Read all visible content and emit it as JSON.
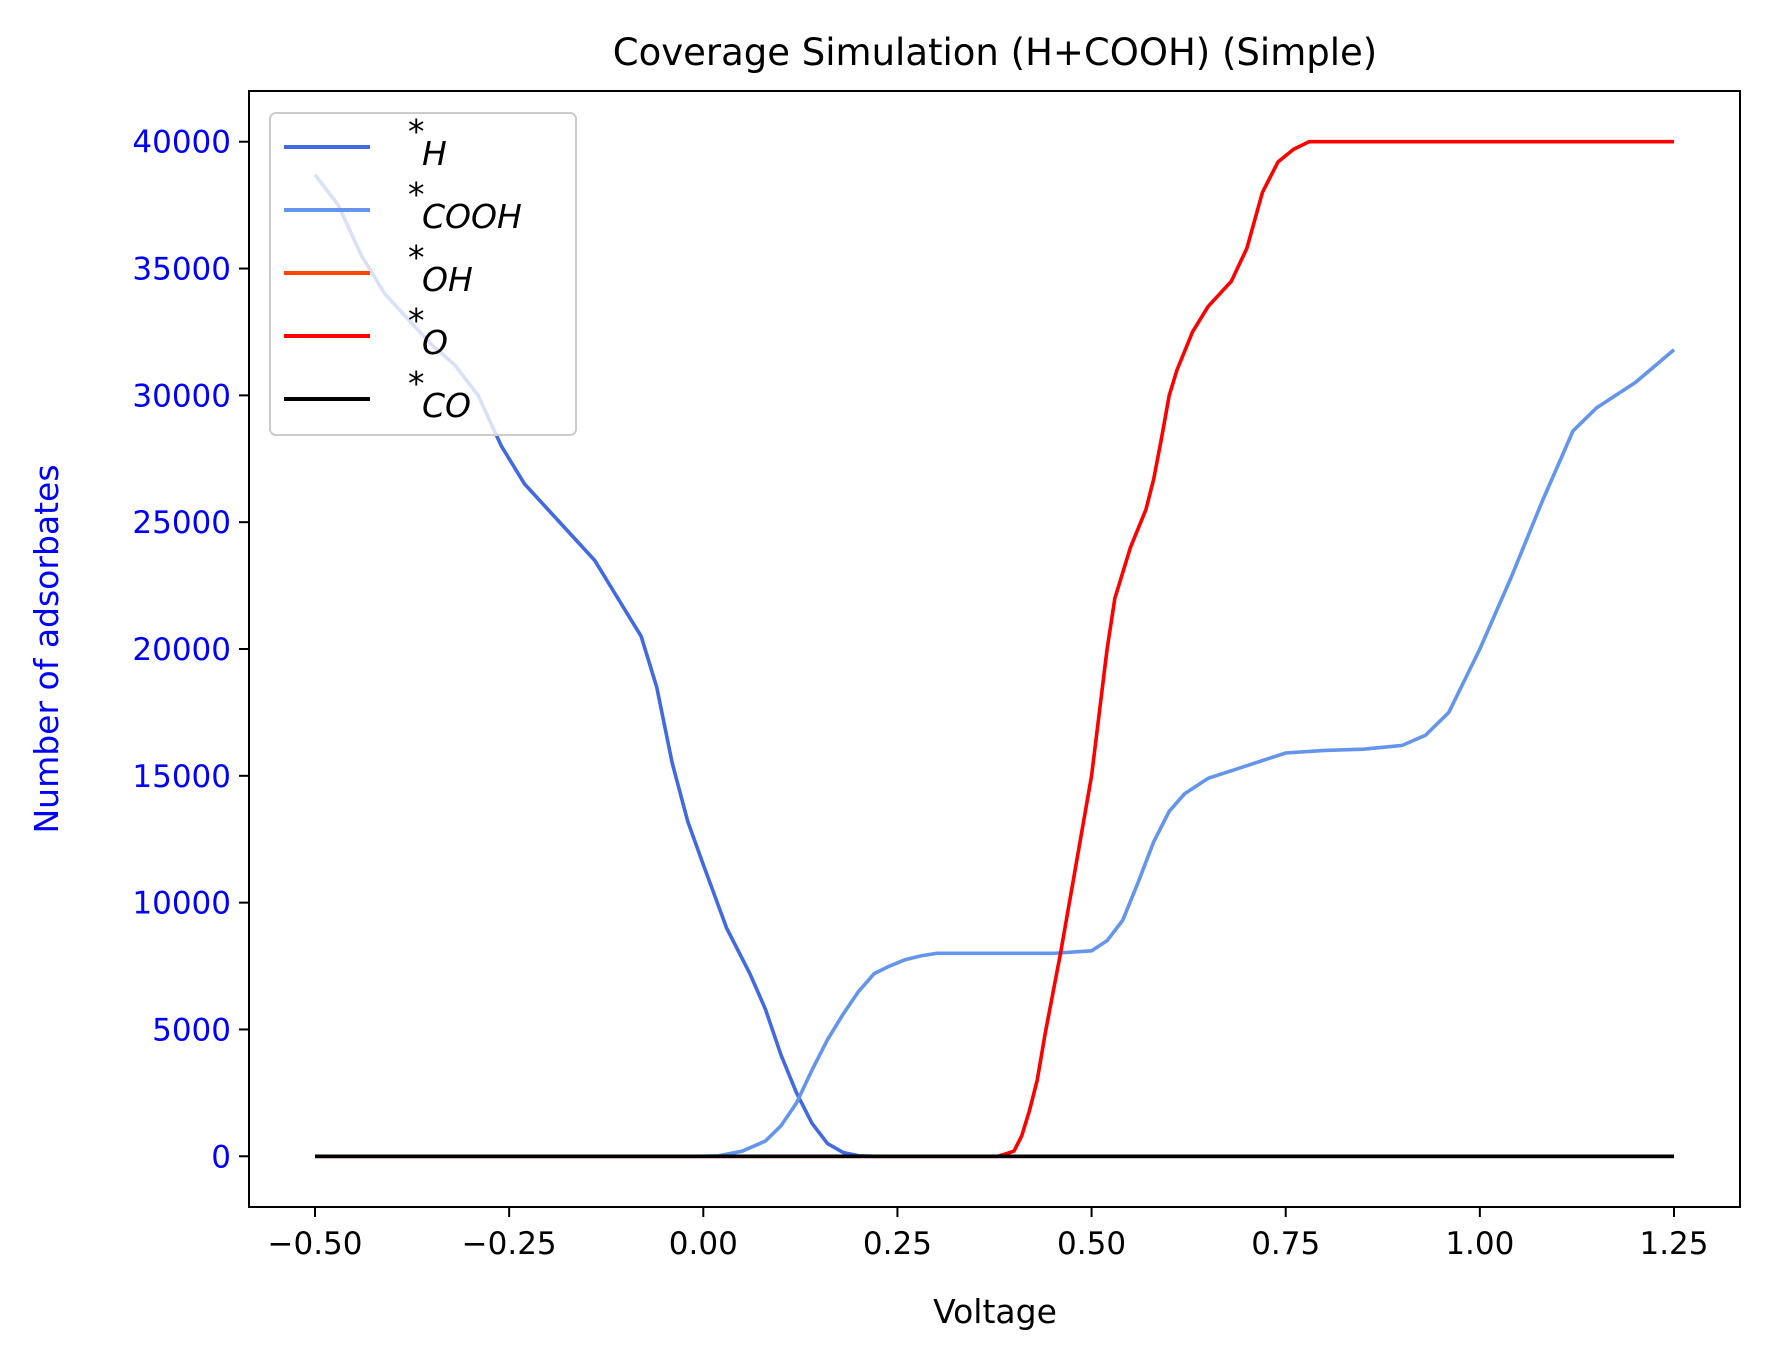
{
  "chart_data": {
    "type": "line",
    "title": "Coverage Simulation (H+COOH) (Simple)",
    "xlabel": "Voltage",
    "ylabel": "Number of adsorbates",
    "xlim": [
      -0.585,
      1.335
    ],
    "ylim": [
      -2000,
      42000
    ],
    "xticks": [
      -0.5,
      -0.25,
      0.0,
      0.25,
      0.5,
      0.75,
      1.0,
      1.25
    ],
    "xtick_labels": [
      "−0.50",
      "−0.25",
      "0.00",
      "0.25",
      "0.50",
      "0.75",
      "1.00",
      "1.25"
    ],
    "yticks": [
      0,
      5000,
      10000,
      15000,
      20000,
      25000,
      30000,
      35000,
      40000
    ],
    "ytick_labels": [
      "0",
      "5000",
      "10000",
      "15000",
      "20000",
      "25000",
      "30000",
      "35000",
      "40000"
    ],
    "ylabel_color": "#0000ff",
    "grid": false,
    "legend_position": "top-left",
    "series": [
      {
        "name": "H",
        "color": "#4169e1",
        "x": [
          -0.5,
          -0.47,
          -0.44,
          -0.41,
          -0.38,
          -0.35,
          -0.32,
          -0.29,
          -0.26,
          -0.23,
          -0.2,
          -0.17,
          -0.14,
          -0.11,
          -0.08,
          -0.06,
          -0.04,
          -0.02,
          0.0,
          0.03,
          0.06,
          0.08,
          0.1,
          0.12,
          0.14,
          0.16,
          0.18,
          0.2,
          0.22,
          0.25,
          0.3,
          0.4,
          0.5,
          0.6,
          0.8,
          1.0,
          1.25
        ],
        "y": [
          38700,
          37500,
          35500,
          34000,
          33000,
          32000,
          31200,
          30000,
          28000,
          26500,
          25500,
          24500,
          23500,
          22000,
          20500,
          18500,
          15500,
          13200,
          11500,
          9000,
          7200,
          5800,
          4000,
          2500,
          1300,
          500,
          150,
          20,
          0,
          0,
          0,
          0,
          0,
          0,
          0,
          0,
          0
        ]
      },
      {
        "name": "COOH",
        "color": "#6495ed",
        "x": [
          -0.5,
          0.0,
          0.02,
          0.05,
          0.08,
          0.1,
          0.12,
          0.14,
          0.16,
          0.18,
          0.2,
          0.22,
          0.24,
          0.26,
          0.28,
          0.3,
          0.32,
          0.35,
          0.4,
          0.45,
          0.5,
          0.52,
          0.54,
          0.56,
          0.58,
          0.6,
          0.62,
          0.65,
          0.7,
          0.75,
          0.8,
          0.85,
          0.9,
          0.93,
          0.96,
          1.0,
          1.04,
          1.08,
          1.1,
          1.12,
          1.15,
          1.2,
          1.25
        ],
        "y": [
          0,
          0,
          20,
          200,
          600,
          1200,
          2100,
          3400,
          4600,
          5600,
          6500,
          7200,
          7500,
          7750,
          7900,
          8000,
          8000,
          8000,
          8000,
          8000,
          8100,
          8500,
          9300,
          10800,
          12400,
          13600,
          14300,
          14900,
          15400,
          15900,
          16000,
          16050,
          16200,
          16600,
          17500,
          20000,
          22800,
          25800,
          27200,
          28600,
          29500,
          30500,
          31800
        ]
      },
      {
        "name": "OH",
        "color": "#ff4500",
        "x": [
          -0.5,
          1.25
        ],
        "y": [
          0,
          0
        ]
      },
      {
        "name": "O",
        "color": "#ff0000",
        "x": [
          -0.5,
          0.38,
          0.4,
          0.41,
          0.42,
          0.43,
          0.44,
          0.46,
          0.48,
          0.5,
          0.51,
          0.52,
          0.53,
          0.55,
          0.57,
          0.58,
          0.59,
          0.6,
          0.61,
          0.63,
          0.65,
          0.68,
          0.7,
          0.72,
          0.74,
          0.76,
          0.78,
          0.8,
          0.9,
          1.0,
          1.25
        ],
        "y": [
          0,
          0,
          200,
          800,
          1800,
          3000,
          4800,
          8000,
          11500,
          15000,
          17500,
          20000,
          22000,
          24000,
          25500,
          26700,
          28300,
          30000,
          31000,
          32500,
          33500,
          34500,
          35800,
          38000,
          39200,
          39700,
          40000,
          40000,
          40000,
          40000,
          40000
        ]
      },
      {
        "name": "CO",
        "color": "#000000",
        "x": [
          -0.5,
          1.25
        ],
        "y": [
          0,
          0
        ]
      }
    ]
  }
}
